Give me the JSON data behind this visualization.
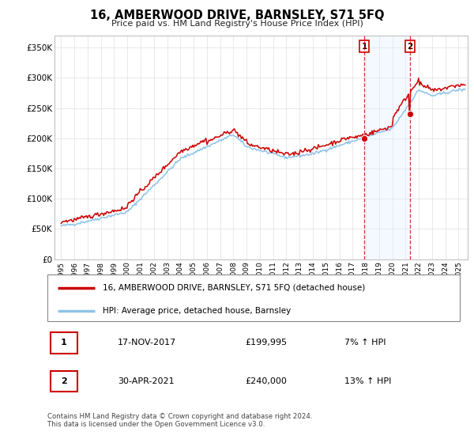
{
  "title": "16, AMBERWOOD DRIVE, BARNSLEY, S71 5FQ",
  "subtitle": "Price paid vs. HM Land Registry's House Price Index (HPI)",
  "ylabel_ticks": [
    "£0",
    "£50K",
    "£100K",
    "£150K",
    "£200K",
    "£250K",
    "£300K",
    "£350K"
  ],
  "ylabel_values": [
    0,
    50000,
    100000,
    150000,
    200000,
    250000,
    300000,
    350000
  ],
  "ylim": [
    0,
    370000
  ],
  "hpi_color": "#8ec4e8",
  "price_color": "#cc0000",
  "marker1_year": 2017.88,
  "marker1_value": 199995,
  "marker2_year": 2021.33,
  "marker2_value": 240000,
  "shade_color": "#ddeeff",
  "legend_label_price": "16, AMBERWOOD DRIVE, BARNSLEY, S71 5FQ (detached house)",
  "legend_label_hpi": "HPI: Average price, detached house, Barnsley",
  "table_row1": [
    "1",
    "17-NOV-2017",
    "£199,995",
    "7% ↑ HPI"
  ],
  "table_row2": [
    "2",
    "30-APR-2021",
    "£240,000",
    "13% ↑ HPI"
  ],
  "footnote": "Contains HM Land Registry data © Crown copyright and database right 2024.\nThis data is licensed under the Open Government Licence v3.0.",
  "xmin": 1994.5,
  "xmax": 2025.7,
  "xticks": [
    1995,
    1996,
    1997,
    1998,
    1999,
    2000,
    2001,
    2002,
    2003,
    2004,
    2005,
    2006,
    2007,
    2008,
    2009,
    2010,
    2011,
    2012,
    2013,
    2014,
    2015,
    2016,
    2017,
    2018,
    2019,
    2020,
    2021,
    2022,
    2023,
    2024,
    2025
  ]
}
